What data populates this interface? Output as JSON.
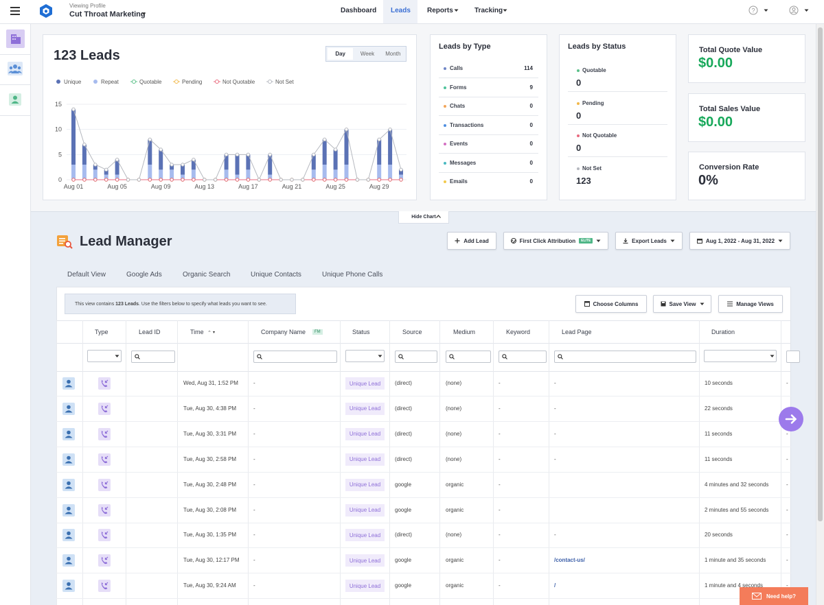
{
  "header": {
    "profile_label": "Viewing Profile",
    "profile_name": "Cut Throat Marketing",
    "nav": [
      "Dashboard",
      "Leads",
      "Reports",
      "Tracking"
    ]
  },
  "chart_data": {
    "type": "bar",
    "stacked": true,
    "title": "123 Leads",
    "range_options": [
      "Day",
      "Week",
      "Month"
    ],
    "categories": [
      "Aug 01",
      null,
      null,
      null,
      "Aug 05",
      null,
      null,
      null,
      "Aug 09",
      null,
      null,
      null,
      "Aug 13",
      null,
      null,
      null,
      "Aug 17",
      null,
      null,
      null,
      "Aug 21",
      null,
      null,
      null,
      "Aug 25",
      null,
      null,
      null,
      "Aug 29",
      null,
      null
    ],
    "series": [
      {
        "name": "Unique",
        "type": "bar",
        "color": "#5b72b5",
        "values": [
          11,
          4,
          1,
          1,
          3,
          0,
          0,
          5,
          4,
          1,
          2,
          2,
          0,
          0,
          3,
          4,
          3,
          0,
          4,
          0,
          0,
          0,
          3,
          5,
          4,
          7,
          0,
          0,
          5,
          7,
          1
        ]
      },
      {
        "name": "Repeat",
        "type": "bar",
        "color": "#a7bbee",
        "values": [
          3,
          3,
          2,
          1,
          1,
          0,
          0,
          3,
          2,
          2,
          1,
          2,
          0,
          0,
          2,
          1,
          2,
          0,
          1,
          0,
          0,
          0,
          2,
          3,
          2,
          3,
          0,
          0,
          3,
          3,
          1
        ]
      },
      {
        "name": "Quotable",
        "type": "line",
        "color": "#5cc18a",
        "values": [
          0,
          0,
          0,
          0,
          0,
          0,
          0,
          0,
          0,
          0,
          0,
          0,
          0,
          0,
          0,
          0,
          0,
          0,
          0,
          0,
          0,
          0,
          0,
          0,
          0,
          0,
          0,
          0,
          0,
          0,
          0
        ]
      },
      {
        "name": "Pending",
        "type": "line",
        "color": "#f2b84b",
        "values": [
          0,
          0,
          0,
          0,
          0,
          0,
          0,
          0,
          0,
          0,
          0,
          0,
          0,
          0,
          0,
          0,
          0,
          0,
          0,
          0,
          0,
          0,
          0,
          0,
          0,
          0,
          0,
          0,
          0,
          0,
          0
        ]
      },
      {
        "name": "Not Quotable",
        "type": "line",
        "color": "#e96b7f",
        "values": [
          0,
          0,
          0,
          0,
          0,
          0,
          0,
          0,
          0,
          0,
          0,
          0,
          0,
          0,
          0,
          0,
          0,
          0,
          0,
          0,
          0,
          0,
          0,
          0,
          0,
          0,
          0,
          0,
          0,
          0,
          0
        ]
      },
      {
        "name": "Not Set",
        "type": "line",
        "color": "#b5b8bf",
        "values": [
          14,
          7,
          3,
          2,
          4,
          0,
          0,
          8,
          6,
          3,
          3,
          4,
          0,
          0,
          5,
          5,
          5,
          0,
          5,
          0,
          0,
          0,
          5,
          8,
          6,
          10,
          0,
          0,
          8,
          10,
          2
        ]
      }
    ],
    "ylim": [
      0,
      15
    ],
    "yticks": [
      0,
      5,
      10,
      15
    ],
    "grid": true
  },
  "leads_by_type": {
    "title": "Leads by Type",
    "items": [
      {
        "name": "Calls",
        "count": 114,
        "color": "#6f86c6"
      },
      {
        "name": "Forms",
        "count": 9,
        "color": "#4fc39b"
      },
      {
        "name": "Chats",
        "count": 0,
        "color": "#f2a65a"
      },
      {
        "name": "Transactions",
        "count": 0,
        "color": "#4f8fe0"
      },
      {
        "name": "Events",
        "count": 0,
        "color": "#d36fc2"
      },
      {
        "name": "Messages",
        "count": 0,
        "color": "#49b9c1"
      },
      {
        "name": "Emails",
        "count": 0,
        "color": "#f2c94c"
      }
    ]
  },
  "leads_by_status": {
    "title": "Leads by Status",
    "items": [
      {
        "name": "Quotable",
        "count": 0,
        "color": "#5cc18a"
      },
      {
        "name": "Pending",
        "count": 0,
        "color": "#f2b84b"
      },
      {
        "name": "Not Quotable",
        "count": 0,
        "color": "#e96b7f"
      },
      {
        "name": "Not Set",
        "count": 123,
        "color": "#b5b8bf"
      }
    ]
  },
  "cards": [
    {
      "title": "Total Quote Value",
      "value": "$0.00"
    },
    {
      "title": "Total Sales Value",
      "value": "$0.00"
    },
    {
      "title": "Conversion Rate",
      "value": "0%"
    }
  ],
  "hide_chart": "Hide Chart",
  "lead_manager": {
    "title": "Lead Manager",
    "buttons": [
      "Add Lead",
      "First Click Attribution",
      "Export Leads",
      "Aug 1, 2022 - Aug 31, 2022"
    ],
    "elite_badge": "ELITE",
    "tabs": [
      "Default View",
      "Google Ads",
      "Organic Search",
      "Unique Contacts",
      "Unique Phone Calls"
    ],
    "info_prefix": "This view contains",
    "info_bold": "123 Leads",
    "info_suffix": ". Use the filters below to specify what leads you want to see.",
    "table_buttons": [
      "Choose Columns",
      "Save View",
      "Manage Views"
    ]
  },
  "table": {
    "columns": [
      "Type",
      "Lead ID",
      "Time",
      "Company Name",
      "Status",
      "Source",
      "Medium",
      "Keyword",
      "Lead Page",
      "Duration"
    ],
    "fm_badge": "FM",
    "rows": [
      [
        "Wed, Aug 31, 1:52 PM",
        "-",
        "Unique Lead",
        "(direct)",
        "(none)",
        "-",
        "-",
        "10 seconds",
        "-"
      ],
      [
        "Tue, Aug 30, 4:38 PM",
        "-",
        "Unique Lead",
        "(direct)",
        "(none)",
        "-",
        "-",
        "22 seconds",
        "-"
      ],
      [
        "Tue, Aug 30, 3:31 PM",
        "-",
        "Unique Lead",
        "(direct)",
        "(none)",
        "-",
        "-",
        "11 seconds",
        "-"
      ],
      [
        "Tue, Aug 30, 2:58 PM",
        "-",
        "Unique Lead",
        "(direct)",
        "(none)",
        "-",
        "-",
        "11 seconds",
        "-"
      ],
      [
        "Tue, Aug 30, 2:48 PM",
        "-",
        "Unique Lead",
        "google",
        "organic",
        "-",
        null,
        "4 minutes and 32 seconds",
        "-"
      ],
      [
        "Tue, Aug 30, 2:08 PM",
        "-",
        "Unique Lead",
        "google",
        "organic",
        "-",
        null,
        "2 minutes and 55 seconds",
        "-"
      ],
      [
        "Tue, Aug 30, 1:35 PM",
        "-",
        "Unique Lead",
        "(direct)",
        "(none)",
        "-",
        "-",
        "20 seconds",
        "-"
      ],
      [
        "Tue, Aug 30, 12:17 PM",
        "-",
        "Unique Lead",
        "google",
        "organic",
        "-",
        "/contact-us/",
        "1 minute and 35 seconds",
        "-"
      ],
      [
        "Tue, Aug 30, 9:24 AM",
        "-",
        "Unique Lead",
        "google",
        "organic",
        "-",
        "/",
        "1 minute and 4 seconds",
        "-"
      ]
    ]
  },
  "need_help": "Need help?"
}
